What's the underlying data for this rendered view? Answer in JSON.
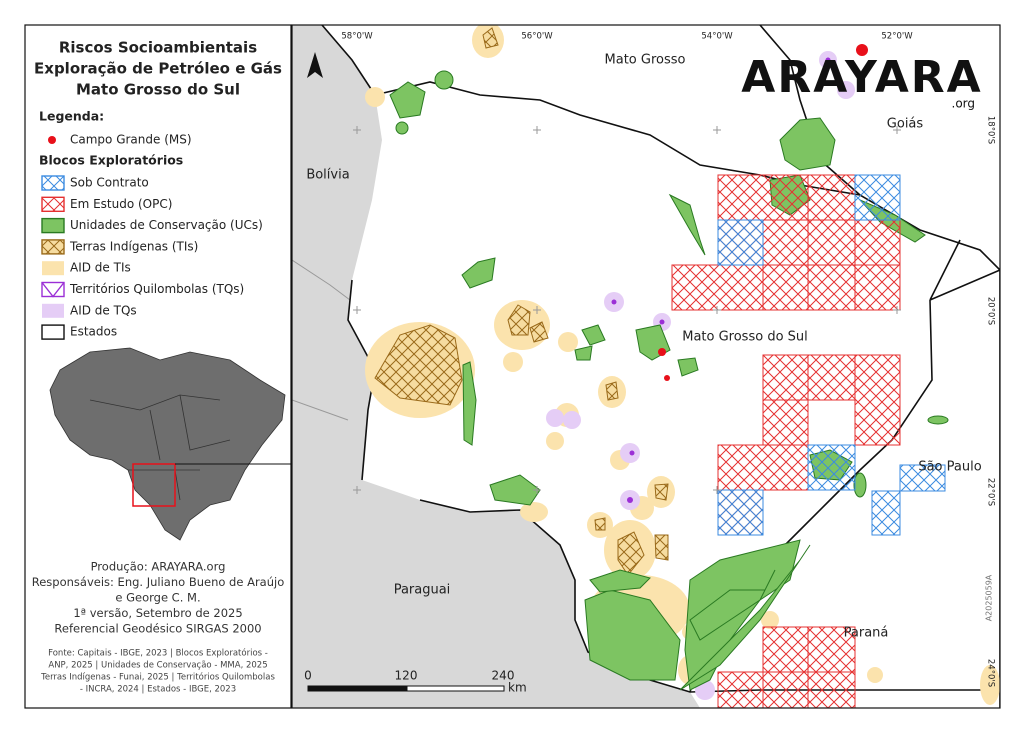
{
  "title": [
    "Riscos Socioambientais",
    "Exploração de Petróleo e Gás",
    "Mato Grosso do Sul"
  ],
  "legend": {
    "heading": "Legenda:",
    "point": "Campo Grande (MS)",
    "group": "Blocos Exploratórios",
    "items": [
      "Sob Contrato",
      "Em Estudo (OPC)",
      "Unidades de Conservação (UCs)",
      "Terras Indígenas (TIs)",
      "AID de TIs",
      "Territórios Quilombolas (TQs)",
      "AID de TQs",
      "Estados"
    ]
  },
  "credits": [
    "Produção: ARAYARA.org",
    "Responsáveis: Eng. Juliano Bueno de Araújo",
    "e George C. M.",
    "1ª versão, Setembro de 2025",
    "Referencial Geodésico SIRGAS 2000"
  ],
  "sources": [
    "Fonte: Capitais - IBGE, 2023 | Blocos Exploratórios -",
    "ANP, 2025 | Unidades de Conservação - MMA, 2025",
    "Terras Indígenas - Funai, 2025 | Territórios Quilombolas",
    "- INCRA, 2024 | Estados - IBGE, 2023"
  ],
  "map": {
    "longitudes": [
      "58°0'W",
      "56°0'W",
      "54°0'W",
      "52°0'W"
    ],
    "latitudes": [
      "18°0'S",
      "20°0'S",
      "22°0'S",
      "24°0'S"
    ],
    "places": [
      "Mato Grosso",
      "Goiás",
      "Bolívia",
      "Mato Grosso do Sul",
      "São Paulo",
      "Paraguai",
      "Paraná"
    ],
    "scale": {
      "labels": [
        "0",
        "120",
        "240"
      ],
      "unit": "km"
    },
    "logo": {
      "name": "ARAYARA",
      "suffix": ".org"
    },
    "code": "A2025059A"
  }
}
